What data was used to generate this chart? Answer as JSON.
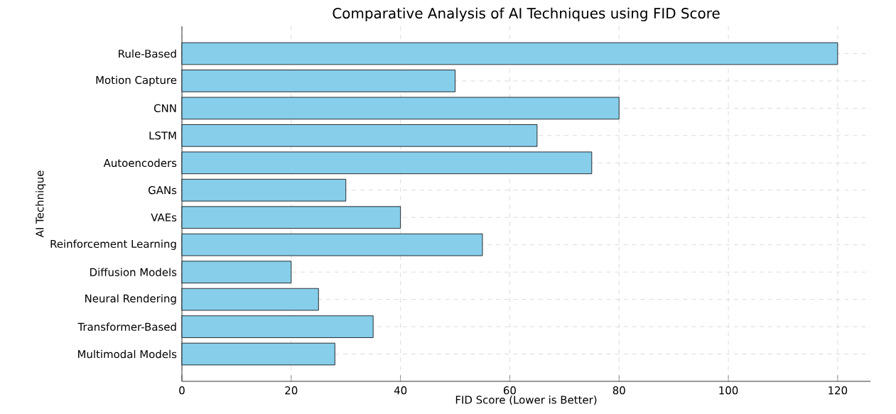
{
  "chart_data": {
    "type": "bar",
    "orientation": "horizontal",
    "title": "Comparative Analysis of AI Techniques using FID Score",
    "xlabel": "FID Score (Lower is Better)",
    "ylabel": "AI Technique",
    "categories": [
      "Rule-Based",
      "Motion Capture",
      "CNN",
      "LSTM",
      "Autoencoders",
      "GANs",
      "VAEs",
      "Reinforcement Learning",
      "Diffusion Models",
      "Neural Rendering",
      "Transformer-Based",
      "Multimodal Models"
    ],
    "values": [
      120,
      50,
      80,
      65,
      75,
      30,
      40,
      55,
      20,
      25,
      35,
      28
    ],
    "color": "#87ceeb",
    "xlim": [
      0,
      126
    ],
    "xticks": [
      0,
      20,
      40,
      60,
      80,
      100,
      120
    ],
    "grid": true
  }
}
